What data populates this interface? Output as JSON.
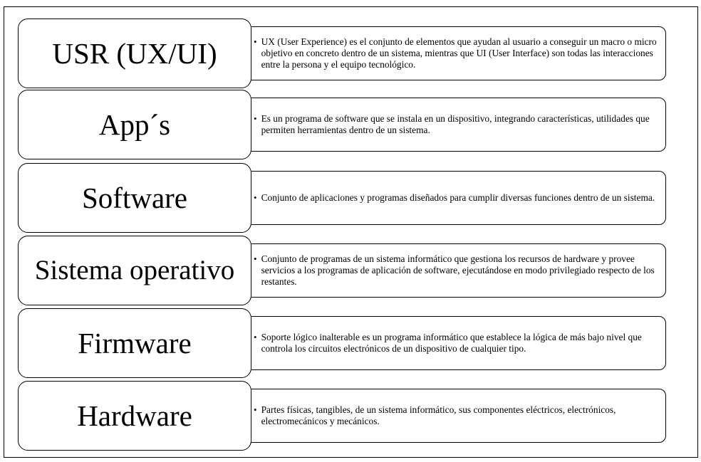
{
  "rows": [
    {
      "label": "USR (UX/UI)",
      "description": "UX (User Experience) es el conjunto de elementos que ayudan al usuario a conseguir un macro o micro objetivo en concreto dentro de un sistema, mientras que UI (User Interface) son todas las interacciones entre la persona y el equipo tecnológico."
    },
    {
      "label": "App´s",
      "description": "Es un programa de software que se instala en un dispositivo, integrando características, utilidades que permiten herramientas dentro de un sistema."
    },
    {
      "label": "Software",
      "description": "Conjunto de aplicaciones y programas diseñados para cumplir diversas funciones dentro de un sistema."
    },
    {
      "label": "Sistema operativo",
      "description": "Conjunto de programas de un sistema informático que gestiona los recursos de hardware y provee servicios a los programas de aplicación de software, ejecutándose en modo privilegiado respecto de los restantes."
    },
    {
      "label": "Firmware",
      "description": "Soporte lógico inalterable es un programa informático que establece la lógica de más bajo nivel que controla los circuitos electrónicos de un dispositivo de cualquier tipo."
    },
    {
      "label": "Hardware",
      "description": "Partes físicas, tangibles, de un sistema informático, sus componentes eléctricos, electrónicos, electromecánicos y mecánicos."
    }
  ],
  "bullet_glyph": "•"
}
